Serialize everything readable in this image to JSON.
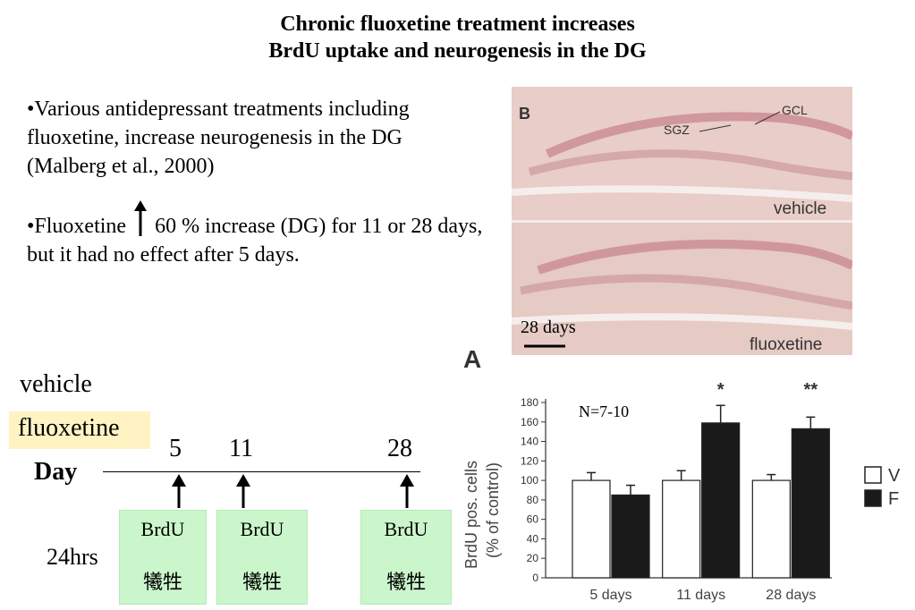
{
  "title": {
    "line1": "Chronic fluoxetine treatment increases",
    "line2": "BrdU uptake and neurogenesis in the DG"
  },
  "bullets": {
    "b1": "•Various antidepressant treatments including fluoxetine, increase neurogenesis in the DG (Malberg et al., 2000)",
    "b2_pre": "•Fluoxetine",
    "b2_post": "60 % increase (DG) for 11 or 28 days, but it had no effect after 5 days."
  },
  "timeline": {
    "vehicle": "vehicle",
    "fluoxetine": "fluoxetine",
    "day_label": "Day",
    "days": [
      "5",
      "11",
      "28"
    ],
    "hours": "24hrs",
    "boxes": [
      {
        "label": "BrdU",
        "sub": "犧牲"
      },
      {
        "label": "BrdU",
        "sub": "犧牲"
      },
      {
        "label": "BrdU",
        "sub": "犧牲"
      }
    ]
  },
  "micrograph": {
    "panel_letter": "B",
    "gcl": "GCL",
    "sgz": "SGZ",
    "vehicle": "vehicle",
    "fluoxetine": "fluoxetine",
    "duration": "28 days"
  },
  "colors": {
    "green_box": "#cbf5cb",
    "fluox_highlight": "#fff3c4",
    "tissue": "#e6c9c4",
    "bar_vehicle": "#ffffff",
    "bar_fluox": "#1a1a1a"
  },
  "chart_data": {
    "type": "bar",
    "panel_letter": "A",
    "annotation": "N=7-10",
    "categories": [
      "5 days",
      "11 days",
      "28 days"
    ],
    "series": [
      {
        "name": "V",
        "values": [
          100,
          100,
          100
        ],
        "errors": [
          8,
          10,
          6
        ]
      },
      {
        "name": "F",
        "values": [
          85,
          159,
          153
        ],
        "errors": [
          10,
          18,
          12
        ]
      }
    ],
    "significance": [
      "",
      "*",
      "**"
    ],
    "ylabel_line1": "BrdU pos. cells",
    "ylabel_line2": "(% of control)",
    "yticks": [
      0,
      20,
      40,
      60,
      80,
      100,
      120,
      140,
      160,
      180
    ],
    "ylim": [
      0,
      180
    ],
    "legend": [
      "V",
      "F"
    ]
  }
}
